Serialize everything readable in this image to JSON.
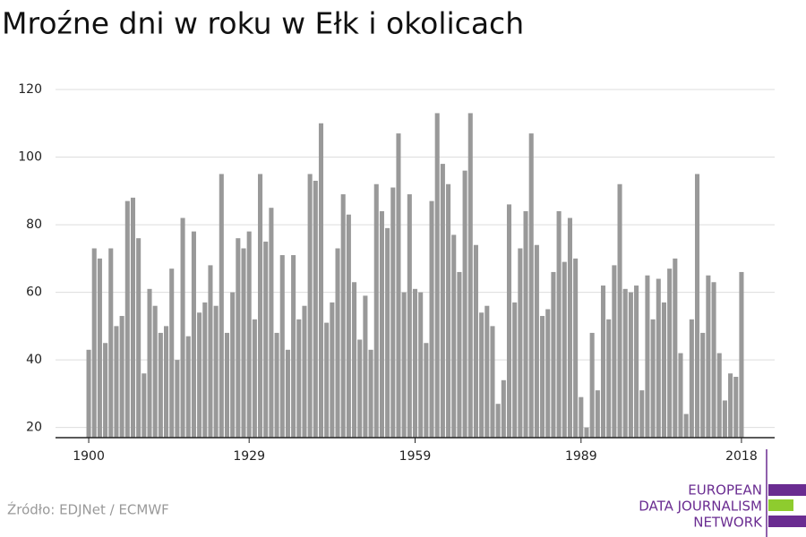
{
  "chart_data": {
    "type": "bar",
    "title": "Mroźne dni w roku w Ełk i okolicach",
    "source": "Źródło: EDJNet / ECMWF",
    "logo": [
      "EUROPEAN",
      "DATA JOURNALISM",
      "NETWORK"
    ],
    "color": "#999999",
    "grid": true,
    "x": [
      1900,
      1901,
      1902,
      1903,
      1904,
      1905,
      1906,
      1907,
      1908,
      1909,
      1910,
      1911,
      1912,
      1913,
      1914,
      1915,
      1916,
      1917,
      1918,
      1919,
      1920,
      1921,
      1922,
      1923,
      1924,
      1925,
      1926,
      1927,
      1928,
      1929,
      1930,
      1931,
      1932,
      1933,
      1934,
      1935,
      1936,
      1937,
      1938,
      1939,
      1940,
      1941,
      1942,
      1943,
      1944,
      1945,
      1946,
      1947,
      1948,
      1949,
      1950,
      1951,
      1952,
      1953,
      1954,
      1955,
      1956,
      1957,
      1958,
      1959,
      1960,
      1961,
      1962,
      1963,
      1964,
      1965,
      1966,
      1967,
      1968,
      1969,
      1970,
      1971,
      1972,
      1973,
      1974,
      1975,
      1976,
      1977,
      1978,
      1979,
      1980,
      1981,
      1982,
      1983,
      1984,
      1985,
      1986,
      1987,
      1988,
      1989,
      1990,
      1991,
      1992,
      1993,
      1994,
      1995,
      1996,
      1997,
      1998,
      1999,
      2000,
      2001,
      2002,
      2003,
      2004,
      2005,
      2006,
      2007,
      2008,
      2009,
      2010,
      2011,
      2012,
      2013,
      2014,
      2015,
      2016,
      2017,
      2018
    ],
    "values": [
      43,
      73,
      70,
      45,
      73,
      50,
      53,
      87,
      88,
      76,
      36,
      61,
      56,
      48,
      50,
      67,
      40,
      82,
      47,
      78,
      54,
      57,
      68,
      56,
      95,
      48,
      60,
      76,
      73,
      78,
      52,
      95,
      75,
      85,
      48,
      71,
      43,
      71,
      52,
      56,
      95,
      93,
      110,
      51,
      57,
      73,
      89,
      83,
      63,
      46,
      59,
      43,
      92,
      84,
      79,
      91,
      107,
      60,
      89,
      61,
      60,
      45,
      87,
      113,
      98,
      92,
      77,
      66,
      96,
      113,
      74,
      54,
      56,
      50,
      27,
      34,
      86,
      57,
      73,
      84,
      107,
      74,
      53,
      55,
      66,
      84,
      69,
      82,
      70,
      29,
      20,
      48,
      31,
      62,
      52,
      68,
      92,
      61,
      60,
      62,
      31,
      65,
      52,
      64,
      57,
      67,
      70,
      42,
      24,
      52,
      95,
      48,
      65,
      63,
      42,
      28,
      36,
      35,
      66
    ],
    "xlim": [
      1894,
      2024
    ],
    "xticks": [
      1900,
      1929,
      1959,
      1989,
      2018
    ],
    "ylim": [
      17,
      120
    ],
    "yticks": [
      20,
      40,
      60,
      80,
      100,
      120
    ]
  }
}
